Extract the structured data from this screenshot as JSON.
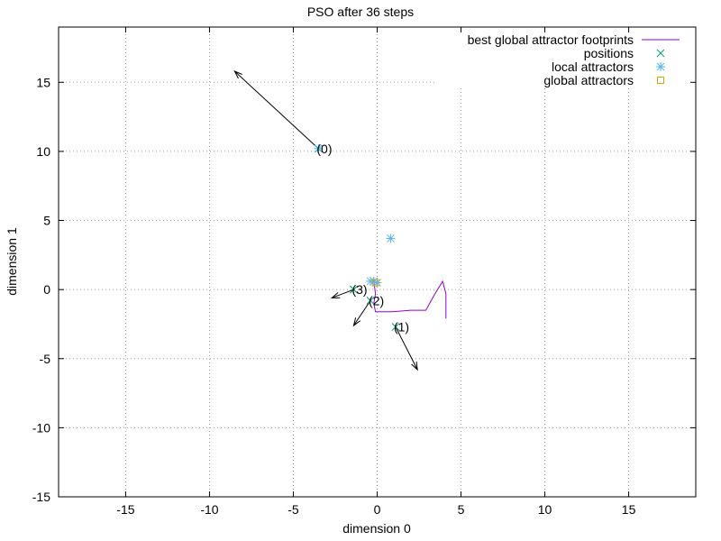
{
  "chart_data": {
    "type": "scatter",
    "title": "PSO after 36 steps",
    "xlabel": "dimension 0",
    "ylabel": "dimension 1",
    "xlim": [
      -19,
      19
    ],
    "ylim": [
      -15,
      19
    ],
    "xticks": [
      -15,
      -10,
      -5,
      0,
      5,
      10,
      15
    ],
    "yticks": [
      -15,
      -10,
      -5,
      0,
      5,
      10,
      15
    ],
    "grid": true,
    "legend_position": "top-right",
    "legend": [
      {
        "label": "best global attractor footprints",
        "marker": "line",
        "color": "#9400d3"
      },
      {
        "label": "positions",
        "marker": "x",
        "color": "#009e73"
      },
      {
        "label": "local attractors",
        "marker": "star",
        "color": "#56b4e9"
      },
      {
        "label": "global attractors",
        "marker": "square",
        "color": "#e69f00"
      }
    ],
    "footprints": [
      [
        -0.2,
        0.6
      ],
      [
        -0.1,
        -0.3
      ],
      [
        -0.2,
        -1.0
      ],
      [
        -0.1,
        -1.6
      ],
      [
        0.9,
        -1.6
      ],
      [
        2.0,
        -1.5
      ],
      [
        2.9,
        -1.5
      ],
      [
        3.4,
        -0.4
      ],
      [
        3.9,
        0.6
      ],
      [
        4.1,
        -0.3
      ],
      [
        4.1,
        -2.1
      ]
    ],
    "particles": [
      {
        "label": "(0)",
        "position": [
          -3.5,
          10.2
        ],
        "velocity_to": [
          -8.5,
          15.8
        ]
      },
      {
        "label": "(1)",
        "position": [
          1.1,
          -2.7
        ],
        "velocity_to": [
          2.4,
          -5.8
        ]
      },
      {
        "label": "(2)",
        "position": [
          -0.4,
          -0.8
        ],
        "velocity_to": [
          -1.4,
          -2.6
        ]
      },
      {
        "label": "(3)",
        "position": [
          -1.4,
          0.0
        ],
        "velocity_to": [
          -2.7,
          -0.6
        ]
      }
    ],
    "local_attractors": [
      [
        0.8,
        3.7
      ],
      [
        -3.5,
        10.2
      ],
      [
        -0.2,
        0.6
      ],
      [
        0.0,
        0.5
      ],
      [
        -0.4,
        0.6
      ]
    ],
    "global_attractors": [
      [
        -0.1,
        0.5
      ]
    ]
  }
}
